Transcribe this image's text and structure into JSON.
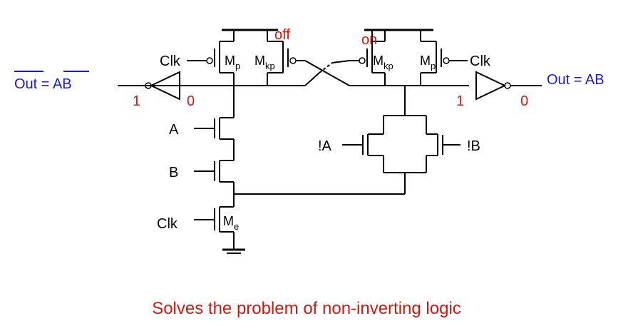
{
  "colors": {
    "wire": "#000000",
    "label": "#000000",
    "state": "#cc1a10",
    "output": "#1a1ad0",
    "caption": "#cc1a10"
  },
  "left_output": {
    "lhs": "Out",
    "eq": " = ",
    "rhs": "AB"
  },
  "right_output": "Out = AB",
  "left_inverter": {
    "in": "1",
    "out": "0"
  },
  "right_inverter": {
    "in": "1",
    "out": "0"
  },
  "keeper_states": {
    "left": "off",
    "right": "on"
  },
  "clk_left": "Clk",
  "clk_right": "Clk",
  "clk_eval": "Clk",
  "inputs": {
    "a": "A",
    "b": "B",
    "not_a": "!A",
    "not_b": "!B"
  },
  "transistors": {
    "mp_left": {
      "main": "M",
      "sub": "p"
    },
    "mkp_left": {
      "main": "M",
      "sub": "kp"
    },
    "mkp_right": {
      "main": "M",
      "sub": "kp"
    },
    "mp_right": {
      "main": "M",
      "sub": "p"
    },
    "me": {
      "main": "M",
      "sub": "e"
    }
  },
  "caption": "Solves the problem of non-inverting logic"
}
